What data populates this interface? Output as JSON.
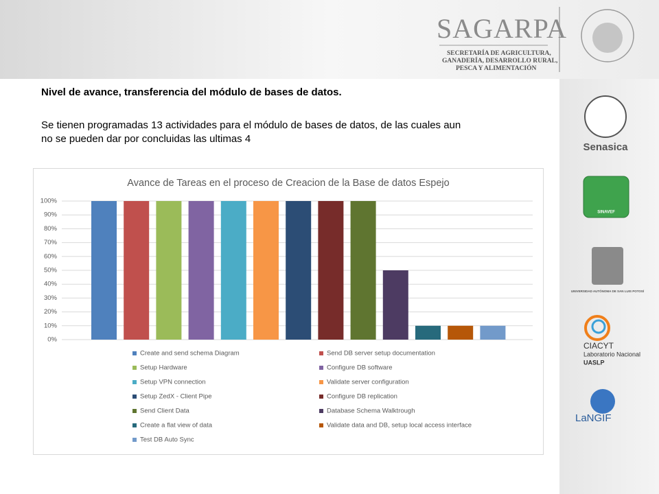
{
  "header": {
    "brand": "SAGARPA",
    "subtitle_lines": [
      "SECRETARÍA DE AGRICULTURA,",
      "GANADERÍA, DESARROLLO RURAL,",
      "PESCA Y ALIMENTACIÓN"
    ]
  },
  "slide": {
    "title": "Nivel de avance, transferencia del módulo de bases de datos.",
    "paragraph_lines": [
      "Se tienen programadas 13 actividades para el módulo de bases de datos, de las cuales  aun",
      "no se pueden dar por concluidas las ultimas 4"
    ]
  },
  "sidebar": {
    "logos": [
      "Senasica",
      "SINAVEF",
      "UNIVERSIDAD AUTÓNOMA DE SAN LUIS POTOSÍ",
      "CIACYT",
      "Laboratorio Nacional",
      "UASLP",
      "LaNGIF"
    ]
  },
  "chart_data": {
    "type": "bar",
    "title": "Avance de Tareas en el proceso de Creacion de la Base de datos Espejo",
    "ylim": [
      0,
      100
    ],
    "yticks": [
      {
        "value": 0,
        "label": "0%"
      },
      {
        "value": 10,
        "label": "10%"
      },
      {
        "value": 20,
        "label": "20%"
      },
      {
        "value": 30,
        "label": "30%"
      },
      {
        "value": 40,
        "label": "40%"
      },
      {
        "value": 50,
        "label": "50%"
      },
      {
        "value": 60,
        "label": "60%"
      },
      {
        "value": 70,
        "label": "70%"
      },
      {
        "value": 80,
        "label": "80%"
      },
      {
        "value": 90,
        "label": "90%"
      },
      {
        "value": 100,
        "label": "100%"
      }
    ],
    "grid": true,
    "legend": "bottom",
    "series": [
      {
        "name": "Create and send schema Diagram",
        "color": "#4f81bd",
        "values": [
          100
        ]
      },
      {
        "name": "Send DB server setup documentation",
        "color": "#c0504d",
        "values": [
          100
        ]
      },
      {
        "name": "Setup Hardware",
        "color": "#9bbb59",
        "values": [
          100
        ]
      },
      {
        "name": "Configure DB software",
        "color": "#8064a2",
        "values": [
          100
        ]
      },
      {
        "name": "Setup VPN connection",
        "color": "#4bacc6",
        "values": [
          100
        ]
      },
      {
        "name": "Validate server configuration",
        "color": "#f79646",
        "values": [
          100
        ]
      },
      {
        "name": "Setup ZedX - Client Pipe",
        "color": "#2c4d75",
        "values": [
          100
        ]
      },
      {
        "name": "Configure DB replication",
        "color": "#772c2a",
        "values": [
          100
        ]
      },
      {
        "name": "Send Client Data",
        "color": "#5f7530",
        "values": [
          100
        ]
      },
      {
        "name": "Database Schema Walktrough",
        "color": "#4d3b62",
        "values": [
          50
        ]
      },
      {
        "name": "Create a flat view of data",
        "color": "#276a7c",
        "values": [
          10
        ]
      },
      {
        "name": "Validate data and DB, setup local access interface",
        "color": "#b65708",
        "values": [
          10
        ]
      },
      {
        "name": "Test DB Auto Sync",
        "color": "#729aca",
        "values": [
          10
        ]
      }
    ]
  }
}
